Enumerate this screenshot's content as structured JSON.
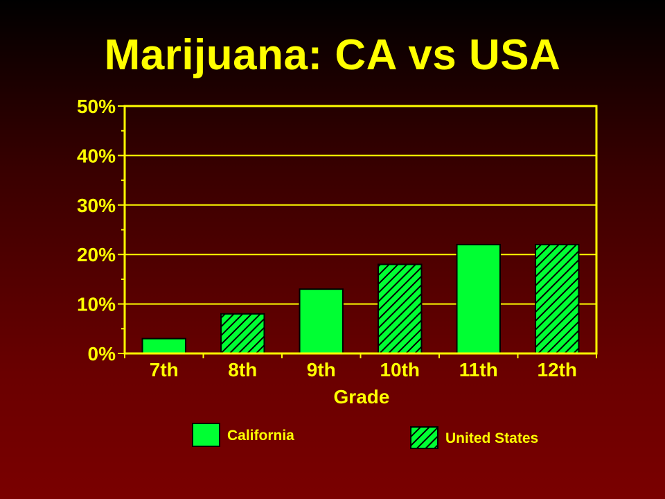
{
  "chart_data": {
    "type": "bar",
    "title": "Marijuana: CA vs USA",
    "xlabel": "Grade",
    "ylabel": "",
    "categories": [
      "7th",
      "8th",
      "9th",
      "10th",
      "11th",
      "12th"
    ],
    "values": [
      3,
      8,
      13,
      18,
      22,
      22
    ],
    "bar_series": [
      "California",
      "United States",
      "California",
      "United States",
      "California",
      "United States"
    ],
    "series": [
      {
        "name": "California",
        "color": "#00ff33",
        "pattern": "solid"
      },
      {
        "name": "United States",
        "color": "#00ff33",
        "pattern": "hatched"
      }
    ],
    "ylim": [
      0,
      50
    ],
    "y_ticks": [
      0,
      10,
      20,
      30,
      40,
      50
    ],
    "y_tick_labels": [
      "0%",
      "10%",
      "20%",
      "30%",
      "40%",
      "50%"
    ],
    "y_minor_step": 5,
    "grid": true,
    "legend_position": "bottom",
    "colors": {
      "text": "#ffff00",
      "axis": "#ffff00",
      "bar": "#00ff33",
      "bar_outline": "#000000"
    }
  }
}
